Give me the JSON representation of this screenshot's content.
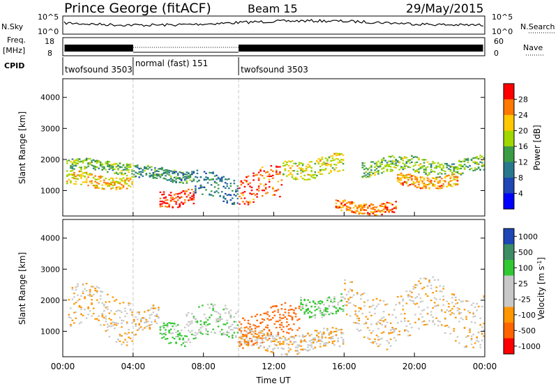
{
  "header": {
    "title": "Prince George (fitACF)",
    "beam": "Beam 15",
    "date": "29/May/2015"
  },
  "sky_panel": {
    "left_label": "N.Sky",
    "right_label": "N.Search",
    "left_ticks": [
      "10^5",
      "10^0"
    ],
    "right_ticks": [
      "10^5",
      "10^0"
    ]
  },
  "freq_panel": {
    "left_label": "Freq.",
    "left_unit": "[MHz]",
    "right_label": "Nave",
    "left_ticks": [
      "18",
      "8"
    ],
    "right_ticks": [
      "60",
      "0"
    ]
  },
  "cpid": {
    "label": "CPID",
    "modes": [
      {
        "text": "twofsound 3503",
        "start_hour": 0
      },
      {
        "text": "normal (fast) 151",
        "start_hour": 4
      },
      {
        "text": "twofsound 3503",
        "start_hour": 10
      }
    ]
  },
  "colors": {
    "power": [
      "#0000ff",
      "#1e46b4",
      "#28788c",
      "#3c9c46",
      "#a0d700",
      "#ffc800",
      "#ff7800",
      "#ff0000"
    ],
    "velocity": [
      "#ff0000",
      "#ff6400",
      "#ff9600",
      "#c8c8c8",
      "#c8c8c8",
      "#32c832",
      "#3c8c64",
      "#1e46b4"
    ],
    "gridline": "#c8c8c8"
  },
  "chart_data": [
    {
      "type": "heatmap",
      "name": "power",
      "ylabel": "Slant Range [km]",
      "ylim": [
        180,
        4600
      ],
      "yticks": [
        1000,
        2000,
        3000,
        4000
      ],
      "colorbar": {
        "label": "Power [dB]",
        "ticks": [
          "4",
          "8",
          "12",
          "16",
          "20",
          "24",
          "28"
        ],
        "range": [
          0,
          32
        ]
      },
      "xlim_hours": [
        0,
        24
      ],
      "bands": [
        {
          "x": [
            0.2,
            4.0
          ],
          "center_km": 1800,
          "width_km": 180,
          "value_db": 16
        },
        {
          "x": [
            0.2,
            4.0
          ],
          "center_km": 1350,
          "width_km": 220,
          "value_db": 22
        },
        {
          "x": [
            4.0,
            7.5
          ],
          "center_km": 1550,
          "width_km": 200,
          "value_db": 12
        },
        {
          "x": [
            5.5,
            7.5
          ],
          "center_km": 850,
          "width_km": 260,
          "value_db": 30
        },
        {
          "x": [
            7.5,
            10.0
          ],
          "center_km": 1100,
          "width_km": 400,
          "value_db": 10
        },
        {
          "x": [
            10.0,
            12.5
          ],
          "center_km": 1100,
          "width_km": 500,
          "value_db": 28
        },
        {
          "x": [
            12.5,
            16.0
          ],
          "center_km": 1800,
          "width_km": 300,
          "value_db": 20
        },
        {
          "x": [
            15.5,
            19.0
          ],
          "center_km": 500,
          "width_km": 180,
          "value_db": 26
        },
        {
          "x": [
            17.0,
            24.0
          ],
          "center_km": 1800,
          "width_km": 250,
          "value_db": 16
        },
        {
          "x": [
            19.0,
            22.5
          ],
          "center_km": 1350,
          "width_km": 200,
          "value_db": 24
        }
      ]
    },
    {
      "type": "heatmap",
      "name": "velocity",
      "ylabel": "Slant Range [km]",
      "xlabel": "Time UT",
      "ylim": [
        180,
        4600
      ],
      "yticks": [
        1000,
        2000,
        3000,
        4000
      ],
      "xticks": [
        "00:00",
        "04:00",
        "08:00",
        "12:00",
        "16:00",
        "20:00",
        "00:00"
      ],
      "colorbar": {
        "label": "Velocity [m s",
        "label_sup": "-1",
        "label_end": "]",
        "ticks": [
          "-1000",
          "-500",
          "-100",
          "-25",
          "25",
          "100",
          "500",
          "1000"
        ]
      },
      "xlim_hours": [
        0,
        24
      ],
      "bands": [
        {
          "x": [
            0.3,
            4.0
          ],
          "center_km": 1600,
          "width_km": 700,
          "value_ms": 0
        },
        {
          "x": [
            4.0,
            5.5
          ],
          "center_km": 1300,
          "width_km": 400,
          "value_ms": 0
        },
        {
          "x": [
            5.5,
            7.0
          ],
          "center_km": 1050,
          "width_km": 350,
          "value_ms": 150
        },
        {
          "x": [
            7.0,
            10.0
          ],
          "center_km": 1200,
          "width_km": 500,
          "value_ms": 80
        },
        {
          "x": [
            10.0,
            13.5
          ],
          "center_km": 1200,
          "width_km": 500,
          "value_ms": -200
        },
        {
          "x": [
            13.5,
            16.0
          ],
          "center_km": 1900,
          "width_km": 300,
          "value_ms": 150
        },
        {
          "x": [
            16.0,
            24.0
          ],
          "center_km": 1600,
          "width_km": 800,
          "value_ms": 0
        },
        {
          "x": [
            10.0,
            16.0
          ],
          "center_km": 700,
          "width_km": 300,
          "value_ms": 0
        }
      ]
    }
  ]
}
